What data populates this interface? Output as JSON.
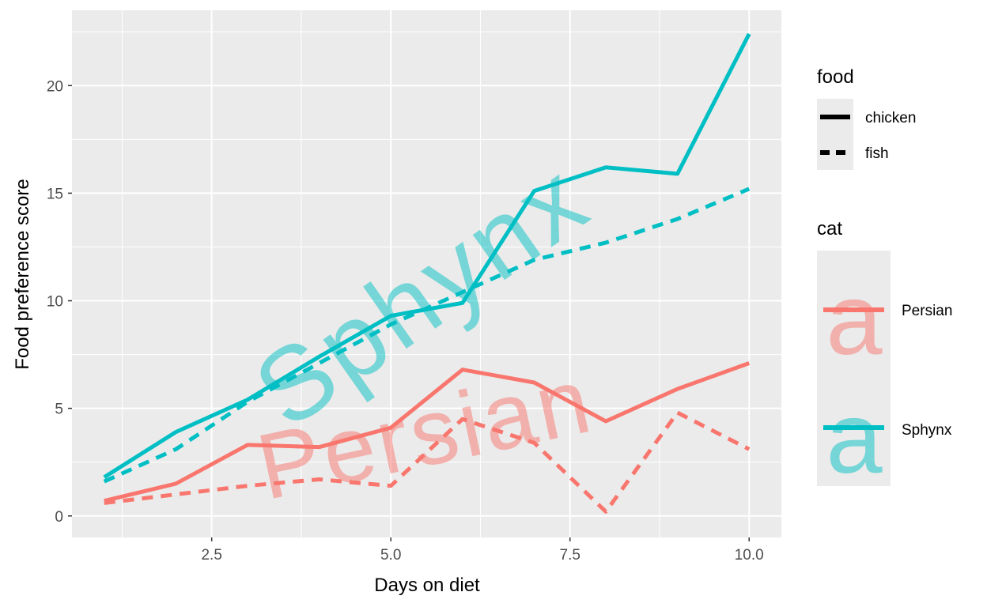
{
  "chart_data": {
    "type": "line",
    "title": "",
    "xlabel": "Days on diet",
    "ylabel": "Food preference score",
    "xlim": [
      0.55,
      10.45
    ],
    "ylim": [
      -1.0,
      23.5
    ],
    "x_ticks": [
      2.5,
      5.0,
      7.5,
      10.0
    ],
    "x_tick_labels": [
      "2.5",
      "5.0",
      "7.5",
      "10.0"
    ],
    "y_ticks": [
      0,
      5,
      10,
      15,
      20
    ],
    "y_tick_labels": [
      "0",
      "5",
      "10",
      "15",
      "20"
    ],
    "grid": true,
    "legend_position": "right",
    "legend": {
      "food": {
        "title": "food",
        "entries": [
          {
            "label": "chicken",
            "linetype": "solid"
          },
          {
            "label": "fish",
            "linetype": "dashed"
          }
        ]
      },
      "cat": {
        "title": "cat",
        "entries": [
          {
            "label": "Persian",
            "color": "#F8766D",
            "glyph": "a"
          },
          {
            "label": "Sphynx",
            "color": "#00BFC4",
            "glyph": "a"
          }
        ]
      }
    },
    "text_annotations": [
      {
        "text": "Sphynx",
        "color": "#00BFC4",
        "x": 5.5,
        "y": 10.0,
        "angle": 35
      },
      {
        "text": "Persian",
        "color": "#F8766D",
        "x": 5.5,
        "y": 3.5,
        "angle": 12
      }
    ],
    "x": [
      1,
      2,
      3,
      4,
      5,
      6,
      7,
      8,
      9,
      10
    ],
    "series": [
      {
        "cat": "Persian",
        "food": "chicken",
        "color": "#F8766D",
        "linetype": "solid",
        "values": [
          0.7,
          1.5,
          3.3,
          3.2,
          4.1,
          6.8,
          6.2,
          4.4,
          5.9,
          7.1
        ]
      },
      {
        "cat": "Persian",
        "food": "fish",
        "color": "#F8766D",
        "linetype": "dashed",
        "values": [
          0.6,
          1.0,
          1.4,
          1.7,
          1.4,
          4.5,
          3.4,
          0.2,
          4.8,
          3.1
        ]
      },
      {
        "cat": "Sphynx",
        "food": "chicken",
        "color": "#00BFC4",
        "linetype": "solid",
        "values": [
          1.8,
          3.9,
          5.4,
          7.4,
          9.3,
          9.9,
          15.1,
          16.2,
          15.9,
          22.4
        ]
      },
      {
        "cat": "Sphynx",
        "food": "fish",
        "color": "#00BFC4",
        "linetype": "dashed",
        "values": [
          1.6,
          3.1,
          5.3,
          7.1,
          8.9,
          10.4,
          11.9,
          12.7,
          13.8,
          15.2
        ]
      }
    ]
  },
  "colors": {
    "panel_background": "#EBEBEB",
    "grid_major": "#FFFFFF",
    "axis_text": "#4D4D4D"
  }
}
